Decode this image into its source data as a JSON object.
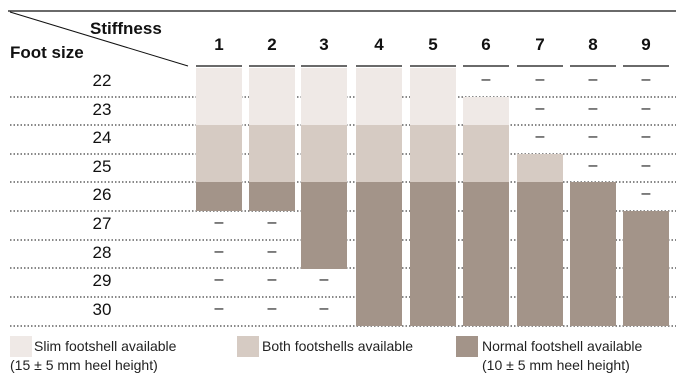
{
  "header": {
    "corner_top": "Stiffness",
    "corner_bottom": "Foot size",
    "columns": [
      "1",
      "2",
      "3",
      "4",
      "5",
      "6",
      "7",
      "8",
      "9"
    ]
  },
  "rows": [
    {
      "size": "22",
      "cells": [
        "slim",
        "slim",
        "slim",
        "slim",
        "slim",
        "dash",
        "dash",
        "dash",
        "dash"
      ]
    },
    {
      "size": "23",
      "cells": [
        "slim",
        "slim",
        "slim",
        "slim",
        "slim",
        "slim",
        "dash",
        "dash",
        "dash"
      ]
    },
    {
      "size": "24",
      "cells": [
        "both",
        "both",
        "both",
        "both",
        "both",
        "both",
        "dash",
        "dash",
        "dash"
      ]
    },
    {
      "size": "25",
      "cells": [
        "both",
        "both",
        "both",
        "both",
        "both",
        "both",
        "both",
        "dash",
        "dash"
      ]
    },
    {
      "size": "26",
      "cells": [
        "normal",
        "normal",
        "normal",
        "normal",
        "normal",
        "normal",
        "normal",
        "normal",
        "dash"
      ]
    },
    {
      "size": "27",
      "cells": [
        "dash",
        "dash",
        "normal",
        "normal",
        "normal",
        "normal",
        "normal",
        "normal",
        "normal"
      ]
    },
    {
      "size": "28",
      "cells": [
        "dash",
        "dash",
        "normal",
        "normal",
        "normal",
        "normal",
        "normal",
        "normal",
        "normal"
      ]
    },
    {
      "size": "29",
      "cells": [
        "dash",
        "dash",
        "dash",
        "normal",
        "normal",
        "normal",
        "normal",
        "normal",
        "normal"
      ]
    },
    {
      "size": "30",
      "cells": [
        "dash",
        "dash",
        "dash",
        "normal",
        "normal",
        "normal",
        "normal",
        "normal",
        "normal"
      ]
    }
  ],
  "dash_symbol": "–",
  "colors": {
    "slim": "#efe9e6",
    "both": "#d6cbc3",
    "normal": "#a39489",
    "rule": "#111111"
  },
  "legend": [
    {
      "kind": "slim",
      "line1": "Slim footshell available",
      "line2": "(15 ± 5 mm heel height)"
    },
    {
      "kind": "both",
      "line1": "Both footshells available",
      "line2": ""
    },
    {
      "kind": "normal",
      "line1": "Normal footshell available",
      "line2": "(10 ± 5 mm heel height)"
    }
  ]
}
